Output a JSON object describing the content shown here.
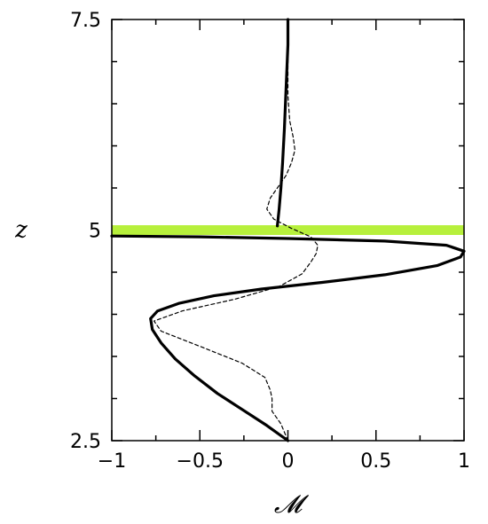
{
  "chart_data": {
    "type": "line",
    "xlabel": "𝓜",
    "ylabel": "z",
    "xlim": [
      -1,
      1
    ],
    "ylim": [
      2.5,
      7.5
    ],
    "x_ticks": [
      -1,
      -0.5,
      0,
      0.5,
      1
    ],
    "x_tick_labels": [
      "−1",
      "−0.5",
      "0",
      "0.5",
      "1"
    ],
    "y_ticks": [
      2.5,
      5,
      7.5
    ],
    "y_tick_labels": [
      "2.5",
      "5",
      "7.5"
    ],
    "grid": false,
    "highlight": {
      "z": 5.0,
      "color": "#b7f03c"
    },
    "series": [
      {
        "style": "solid",
        "points": [
          [
            0.0,
            2.5
          ],
          [
            -0.12,
            2.68
          ],
          [
            -0.26,
            2.87
          ],
          [
            -0.4,
            3.06
          ],
          [
            -0.53,
            3.27
          ],
          [
            -0.64,
            3.47
          ],
          [
            -0.72,
            3.66
          ],
          [
            -0.77,
            3.82
          ],
          [
            -0.78,
            3.95
          ],
          [
            -0.74,
            4.04
          ],
          [
            -0.62,
            4.13
          ],
          [
            -0.42,
            4.22
          ],
          [
            -0.15,
            4.3
          ],
          [
            0.2,
            4.38
          ],
          [
            0.55,
            4.47
          ],
          [
            0.85,
            4.58
          ],
          [
            0.98,
            4.68
          ],
          [
            1.0,
            4.75
          ],
          [
            0.9,
            4.82
          ],
          [
            0.55,
            4.87
          ],
          [
            0.0,
            4.9
          ],
          [
            -0.5,
            4.92
          ],
          [
            -1.0,
            4.93
          ]
        ]
      },
      {
        "style": "solid",
        "points": [
          [
            -0.06,
            5.05
          ],
          [
            -0.05,
            5.25
          ],
          [
            -0.04,
            5.5
          ],
          [
            -0.03,
            5.8
          ],
          [
            -0.02,
            6.2
          ],
          [
            -0.01,
            6.7
          ],
          [
            0.0,
            7.2
          ],
          [
            0.0,
            7.5
          ]
        ]
      },
      {
        "style": "dashed",
        "points": [
          [
            0.0,
            2.5
          ],
          [
            -0.04,
            2.7
          ],
          [
            -0.09,
            2.85
          ],
          [
            -0.09,
            3.0
          ],
          [
            -0.1,
            3.1
          ],
          [
            -0.13,
            3.25
          ],
          [
            -0.26,
            3.42
          ],
          [
            -0.5,
            3.62
          ],
          [
            -0.72,
            3.8
          ],
          [
            -0.76,
            3.92
          ],
          [
            -0.6,
            4.04
          ],
          [
            -0.3,
            4.18
          ],
          [
            -0.05,
            4.33
          ],
          [
            0.08,
            4.48
          ],
          [
            0.13,
            4.62
          ],
          [
            0.16,
            4.72
          ],
          [
            0.17,
            4.82
          ],
          [
            0.13,
            4.92
          ],
          [
            0.02,
            5.02
          ],
          [
            -0.08,
            5.13
          ],
          [
            -0.12,
            5.25
          ],
          [
            -0.1,
            5.38
          ],
          [
            -0.06,
            5.5
          ],
          [
            -0.01,
            5.65
          ],
          [
            0.02,
            5.8
          ],
          [
            0.04,
            5.95
          ],
          [
            0.03,
            6.1
          ],
          [
            0.01,
            6.3
          ],
          [
            0.0,
            6.6
          ],
          [
            0.0,
            7.0
          ],
          [
            0.0,
            7.5
          ]
        ]
      }
    ]
  }
}
